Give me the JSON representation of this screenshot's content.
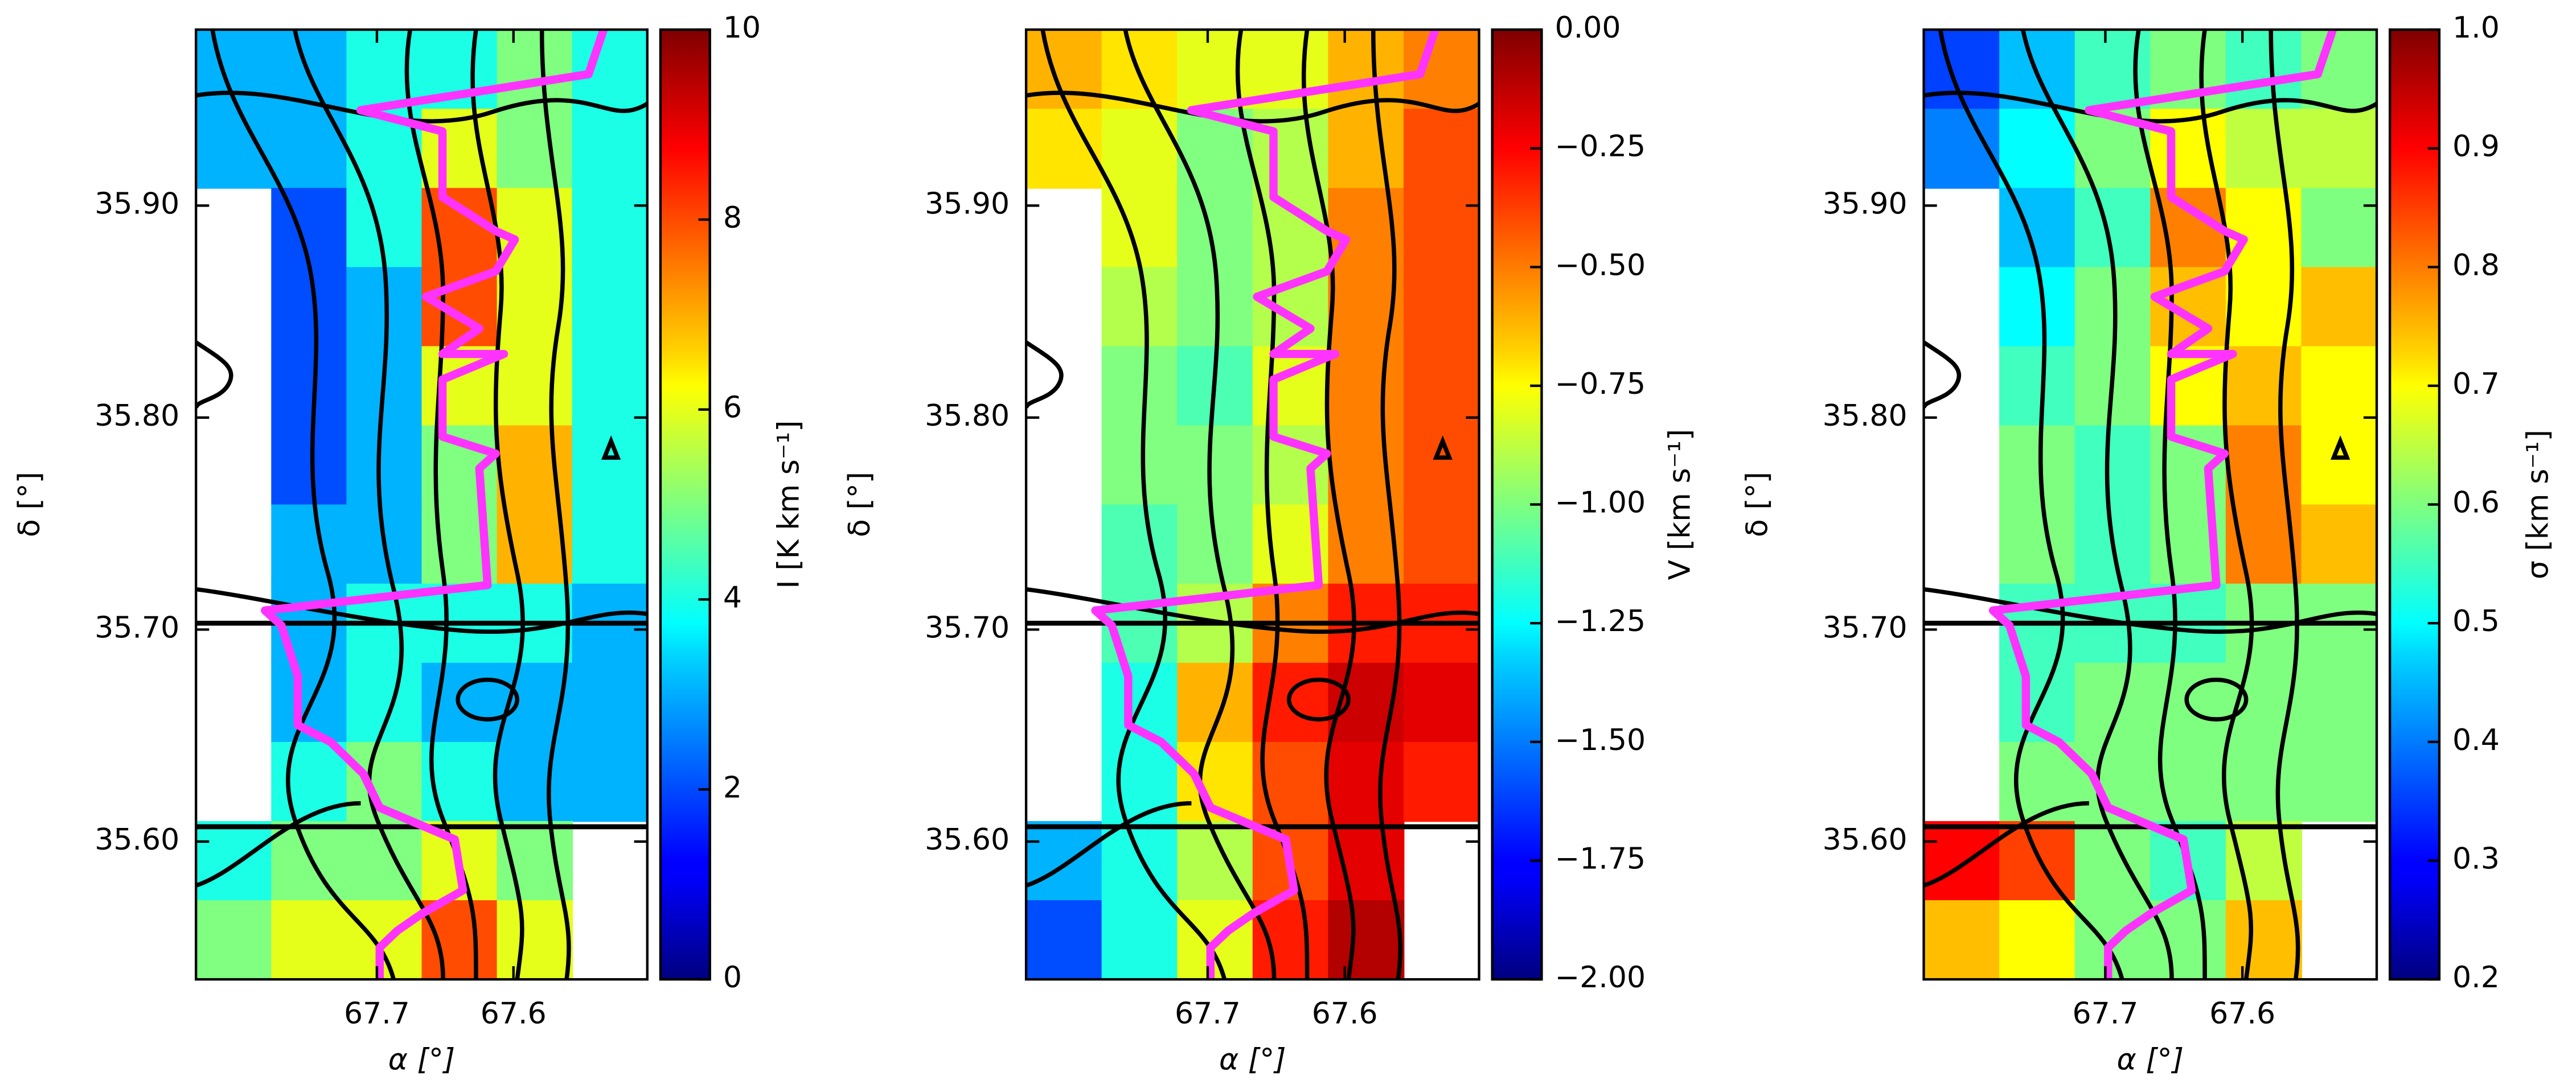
{
  "chart_data": [
    {
      "type": "heatmap",
      "xlabel": "α [°]",
      "ylabel": "δ [°]",
      "colorbar_label": "I [K km s⁻¹]",
      "xlim": [
        67.8325,
        67.502
      ],
      "ylim": [
        35.535,
        35.983
      ],
      "xticks": [
        67.7,
        67.6
      ],
      "yticks": [
        {
          "value": 35.6,
          "label": "35.60"
        },
        {
          "value": 35.7,
          "label": "35.70"
        },
        {
          "value": 35.8,
          "label": "35.80"
        },
        {
          "value": 35.9,
          "label": "35.90"
        }
      ],
      "clim": [
        0,
        10
      ],
      "cticks": [
        0,
        2,
        4,
        6,
        8,
        10
      ],
      "colormap": "jet",
      "z": [
        [
          3,
          3,
          4,
          4,
          5,
          4
        ],
        [
          3,
          3,
          4,
          6,
          5,
          4
        ],
        [
          null,
          2,
          4,
          8,
          6,
          4
        ],
        [
          null,
          2,
          3,
          8,
          6,
          4
        ],
        [
          null,
          2,
          3,
          6,
          6,
          4
        ],
        [
          null,
          2,
          3,
          5,
          7,
          4
        ],
        [
          null,
          3,
          3,
          5,
          7,
          4
        ],
        [
          null,
          3,
          4,
          4,
          4,
          3
        ],
        [
          null,
          3,
          4,
          3,
          3,
          3
        ],
        [
          null,
          4,
          5,
          4,
          3,
          3
        ],
        [
          4,
          5,
          5,
          6,
          5,
          null
        ],
        [
          5,
          6,
          6,
          8,
          6,
          null
        ]
      ],
      "hlines": [
        35.703,
        35.607
      ],
      "line": {
        "color": "#ff33ff",
        "x": [
          67.534,
          67.545,
          67.712,
          67.652,
          67.652,
          67.613,
          67.599,
          67.613,
          67.664,
          67.625,
          67.652,
          67.607,
          67.652,
          67.652,
          67.613,
          67.625,
          67.619,
          67.782,
          67.77,
          67.758,
          67.758,
          67.734,
          67.71,
          67.698,
          67.643,
          67.637,
          67.667,
          67.685,
          67.698,
          67.698
        ],
        "y": [
          35.983,
          35.962,
          35.945,
          35.935,
          35.904,
          35.888,
          35.884,
          35.869,
          35.857,
          35.842,
          35.83,
          35.83,
          35.818,
          35.791,
          35.783,
          35.776,
          35.721,
          35.709,
          35.702,
          35.678,
          35.655,
          35.647,
          35.632,
          35.616,
          35.601,
          35.577,
          35.566,
          35.558,
          35.55,
          35.535
        ]
      }
    },
    {
      "type": "heatmap",
      "xlabel": "α [°]",
      "ylabel": "δ [°]",
      "colorbar_label": "V [km s⁻¹]",
      "xlim": [
        67.8325,
        67.502
      ],
      "ylim": [
        35.535,
        35.983
      ],
      "xticks": [
        67.7,
        67.6
      ],
      "yticks": [
        {
          "value": 35.6,
          "label": "35.60"
        },
        {
          "value": 35.7,
          "label": "35.70"
        },
        {
          "value": 35.8,
          "label": "35.80"
        },
        {
          "value": 35.9,
          "label": "35.90"
        }
      ],
      "clim": [
        -2,
        0
      ],
      "cticks": [
        {
          "value": -2,
          "label": "−2.00"
        },
        {
          "value": -1.75,
          "label": "−1.75"
        },
        {
          "value": -1.5,
          "label": "−1.50"
        },
        {
          "value": -1.25,
          "label": "−1.25"
        },
        {
          "value": -1,
          "label": "−1.00"
        },
        {
          "value": -0.75,
          "label": "−0.75"
        },
        {
          "value": -0.5,
          "label": "−0.50"
        },
        {
          "value": -0.25,
          "label": "−0.25"
        },
        {
          "value": 0,
          "label": "0.00"
        }
      ],
      "colormap": "jet",
      "z": [
        [
          -0.6,
          -0.7,
          -0.8,
          -0.8,
          -0.6,
          -0.5
        ],
        [
          -0.7,
          -0.8,
          -1.0,
          -0.9,
          -0.6,
          -0.4
        ],
        [
          null,
          -0.8,
          -1.0,
          -0.9,
          -0.5,
          -0.4
        ],
        [
          null,
          -0.9,
          -1.0,
          -0.9,
          -0.5,
          -0.4
        ],
        [
          null,
          -1.0,
          -1.1,
          -0.8,
          -0.5,
          -0.4
        ],
        [
          null,
          -1.0,
          -1.0,
          -0.9,
          -0.5,
          -0.4
        ],
        [
          null,
          -1.1,
          -1.0,
          -0.8,
          -0.5,
          -0.4
        ],
        [
          null,
          -1.1,
          -0.9,
          -0.5,
          -0.3,
          -0.3
        ],
        [
          null,
          -1.2,
          -0.6,
          -0.3,
          -0.15,
          -0.2
        ],
        [
          null,
          -1.2,
          -0.7,
          -0.4,
          -0.2,
          -0.3
        ],
        [
          -1.4,
          -1.2,
          -0.9,
          -0.4,
          -0.2,
          null
        ],
        [
          -1.6,
          -1.2,
          -0.8,
          -0.3,
          -0.1,
          null
        ]
      ],
      "hlines": [
        35.703,
        35.607
      ],
      "line": {
        "color": "#ff33ff",
        "x": [
          67.534,
          67.545,
          67.712,
          67.652,
          67.652,
          67.613,
          67.599,
          67.613,
          67.664,
          67.625,
          67.652,
          67.607,
          67.652,
          67.652,
          67.613,
          67.625,
          67.619,
          67.782,
          67.77,
          67.758,
          67.758,
          67.734,
          67.71,
          67.698,
          67.643,
          67.637,
          67.667,
          67.685,
          67.698,
          67.698
        ],
        "y": [
          35.983,
          35.962,
          35.945,
          35.935,
          35.904,
          35.888,
          35.884,
          35.869,
          35.857,
          35.842,
          35.83,
          35.83,
          35.818,
          35.791,
          35.783,
          35.776,
          35.721,
          35.709,
          35.702,
          35.678,
          35.655,
          35.647,
          35.632,
          35.616,
          35.601,
          35.577,
          35.566,
          35.558,
          35.55,
          35.535
        ]
      }
    },
    {
      "type": "heatmap",
      "xlabel": "α [°]",
      "ylabel": "δ [°]",
      "colorbar_label": "σ [km s⁻¹]",
      "xlim": [
        67.8325,
        67.502
      ],
      "ylim": [
        35.535,
        35.983
      ],
      "xticks": [
        67.7,
        67.6
      ],
      "yticks": [
        {
          "value": 35.6,
          "label": "35.60"
        },
        {
          "value": 35.7,
          "label": "35.70"
        },
        {
          "value": 35.8,
          "label": "35.80"
        },
        {
          "value": 35.9,
          "label": "35.90"
        }
      ],
      "clim": [
        0.2,
        1.0
      ],
      "cticks": [
        0.2,
        0.3,
        0.4,
        0.5,
        0.6,
        0.7,
        0.8,
        0.9,
        {
          "value": 1.0,
          "label": "1.0"
        }
      ],
      "colormap": "jet",
      "z": [
        [
          0.35,
          0.45,
          0.55,
          0.6,
          0.55,
          0.6
        ],
        [
          0.4,
          0.5,
          0.6,
          0.7,
          0.65,
          0.65
        ],
        [
          null,
          0.45,
          0.55,
          0.8,
          0.7,
          0.6
        ],
        [
          null,
          0.5,
          0.6,
          0.75,
          0.7,
          0.75
        ],
        [
          null,
          0.55,
          0.6,
          0.7,
          0.75,
          0.7
        ],
        [
          null,
          0.6,
          0.55,
          0.6,
          0.8,
          0.7
        ],
        [
          null,
          0.6,
          0.55,
          0.6,
          0.8,
          0.75
        ],
        [
          null,
          0.55,
          0.55,
          0.55,
          0.6,
          0.6
        ],
        [
          null,
          0.55,
          0.6,
          0.6,
          0.6,
          0.6
        ],
        [
          null,
          0.6,
          0.6,
          0.6,
          0.6,
          0.6
        ],
        [
          0.9,
          0.85,
          0.6,
          0.55,
          0.65,
          null
        ],
        [
          0.75,
          0.7,
          0.6,
          0.6,
          0.75,
          null
        ]
      ],
      "hlines": [
        35.703,
        35.607
      ],
      "line": {
        "color": "#ff33ff",
        "x": [
          67.534,
          67.545,
          67.712,
          67.652,
          67.652,
          67.613,
          67.599,
          67.613,
          67.664,
          67.625,
          67.652,
          67.607,
          67.652,
          67.652,
          67.613,
          67.625,
          67.619,
          67.782,
          67.77,
          67.758,
          67.758,
          67.734,
          67.71,
          67.698,
          67.643,
          67.637,
          67.667,
          67.685,
          67.698,
          67.698
        ],
        "y": [
          35.983,
          35.962,
          35.945,
          35.935,
          35.904,
          35.888,
          35.884,
          35.869,
          35.857,
          35.842,
          35.83,
          35.83,
          35.818,
          35.791,
          35.783,
          35.776,
          35.721,
          35.709,
          35.702,
          35.678,
          35.655,
          35.647,
          35.632,
          35.616,
          35.601,
          35.577,
          35.566,
          35.558,
          35.55,
          35.535
        ]
      }
    }
  ]
}
